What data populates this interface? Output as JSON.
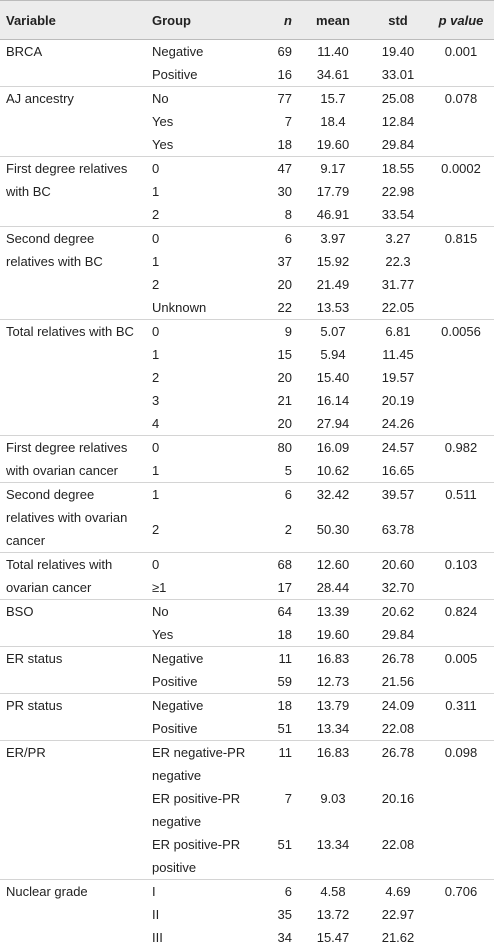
{
  "table": {
    "header": [
      "Variable",
      "Group",
      "n",
      "mean",
      "std",
      "p value"
    ],
    "groups": [
      {
        "variable": "BRCA",
        "p_value": "0.001",
        "rows": [
          [
            "Negative",
            "69",
            "11.40",
            "19.40"
          ],
          [
            "Positive",
            "16",
            "34.61",
            "33.01"
          ]
        ]
      },
      {
        "variable": "AJ ancestry",
        "p_value": "0.078",
        "rows": [
          [
            "No",
            "77",
            "15.7",
            "25.08"
          ],
          [
            "Yes",
            "7",
            "18.4",
            "12.84"
          ],
          [
            "Yes",
            "18",
            "19.60",
            "29.84"
          ]
        ]
      },
      {
        "variable": "First degree relatives with BC",
        "p_value": "0.0002",
        "rows": [
          [
            "0",
            "47",
            "9.17",
            "18.55"
          ],
          [
            "1",
            "30",
            "17.79",
            "22.98"
          ],
          [
            "2",
            "8",
            "46.91",
            "33.54"
          ]
        ]
      },
      {
        "variable": "Second degree relatives with BC",
        "p_value": "0.815",
        "rows": [
          [
            "0",
            "6",
            "3.97",
            "3.27"
          ],
          [
            "1",
            "37",
            "15.92",
            "22.3"
          ],
          [
            "2",
            "20",
            "21.49",
            "31.77"
          ],
          [
            "Unknown",
            "22",
            "13.53",
            "22.05"
          ]
        ]
      },
      {
        "variable": "Total relatives with BC",
        "p_value": "0.0056",
        "rows": [
          [
            "0",
            "9",
            "5.07",
            "6.81"
          ],
          [
            "1",
            "15",
            "5.94",
            "11.45"
          ],
          [
            "2",
            "20",
            "15.40",
            "19.57"
          ],
          [
            "3",
            "21",
            "16.14",
            "20.19"
          ],
          [
            "4",
            "20",
            "27.94",
            "24.26"
          ]
        ]
      },
      {
        "variable": "First degree relatives with ovarian cancer",
        "p_value": "0.982",
        "rows": [
          [
            "0",
            "80",
            "16.09",
            "24.57"
          ],
          [
            "1",
            "5",
            "10.62",
            "16.65"
          ]
        ]
      },
      {
        "variable": "Second degree relatives with ovarian cancer",
        "p_value": "0.511",
        "rows": [
          [
            "1",
            "6",
            "32.42",
            "39.57"
          ],
          [
            "2",
            "2",
            "50.30",
            "63.78"
          ]
        ]
      },
      {
        "variable": "Total relatives with ovarian cancer",
        "p_value": "0.103",
        "rows": [
          [
            "0",
            "68",
            "12.60",
            "20.60"
          ],
          [
            "≥1",
            "17",
            "28.44",
            "32.70"
          ]
        ]
      },
      {
        "variable": "BSO",
        "p_value": "0.824",
        "rows": [
          [
            "No",
            "64",
            "13.39",
            "20.62"
          ],
          [
            "Yes",
            "18",
            "19.60",
            "29.84"
          ]
        ]
      },
      {
        "variable": "ER status",
        "p_value": "0.005",
        "rows": [
          [
            "Negative",
            "11",
            "16.83",
            "26.78"
          ],
          [
            "Positive",
            "59",
            "12.73",
            "21.56"
          ]
        ]
      },
      {
        "variable": "PR status",
        "p_value": "0.311",
        "rows": [
          [
            "Negative",
            "18",
            "13.79",
            "24.09"
          ],
          [
            "Positive",
            "51",
            "13.34",
            "22.08"
          ]
        ]
      },
      {
        "variable": "ER/PR",
        "p_value": "0.098",
        "rows": [
          [
            "ER negative-PR negative",
            "11",
            "16.83",
            "26.78"
          ],
          [
            "ER positive-PR negative",
            "7",
            "9.03",
            "20.16"
          ],
          [
            "ER positive-PR positive",
            "51",
            "13.34",
            "22.08"
          ]
        ]
      },
      {
        "variable": "Nuclear grade",
        "p_value": "0.706",
        "rows": [
          [
            "I",
            "6",
            "4.58",
            "4.69"
          ],
          [
            "II",
            "35",
            "13.72",
            "22.97"
          ],
          [
            "III",
            "34",
            "15.47",
            "21.62"
          ]
        ]
      }
    ]
  }
}
